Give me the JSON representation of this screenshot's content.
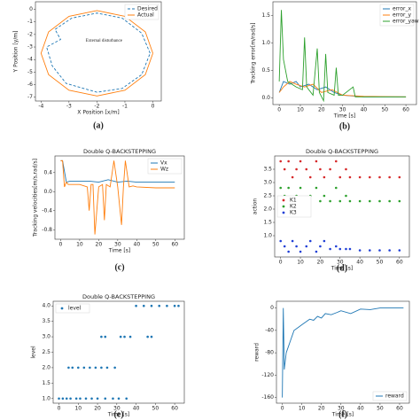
{
  "chart_data": [
    {
      "type": "line",
      "xlabel": "X Position [x/m]",
      "ylabel": "Y Position [y/m]",
      "annotation": "External disturbance",
      "caption": "(a)",
      "legend": "upper right",
      "xlim": [
        -4.2,
        0.3
      ],
      "ylim": [
        -7.3,
        0.6
      ],
      "xticks": [
        -4,
        -3,
        -2,
        -1,
        0
      ],
      "yticks": [
        -7,
        -6,
        -5,
        -4,
        -3,
        -2,
        -1,
        0
      ],
      "series": [
        {
          "name": "Desired",
          "color": "#1f77b4",
          "dash": true,
          "x": [
            -0.1,
            -0.4,
            -1.1,
            -2.0,
            -2.9,
            -3.5,
            -3.3,
            -3.8,
            -3.6,
            -3.1,
            -2.0,
            -1.1,
            -0.4,
            -0.1
          ],
          "values": [
            -3.5,
            -1.9,
            -0.7,
            -0.3,
            -0.7,
            -1.6,
            -2.4,
            -3.0,
            -4.5,
            -5.9,
            -6.6,
            -6.3,
            -5.2,
            -3.5
          ]
        },
        {
          "name": "Actual",
          "color": "#ff7f0e",
          "x": [
            0,
            -0.27,
            -1.0,
            -2.0,
            -3.0,
            -3.73,
            -4.0,
            -3.73,
            -3.0,
            -2.0,
            -1.0,
            -0.27,
            0
          ],
          "values": [
            -3.5,
            -1.8,
            -0.56,
            -0.1,
            -0.56,
            -1.8,
            -3.5,
            -5.2,
            -6.44,
            -6.9,
            -6.44,
            -5.2,
            -3.5
          ]
        }
      ]
    },
    {
      "type": "line",
      "xlabel": "Time [s]",
      "ylabel": "Tracking error[m/rad/s]",
      "caption": "(b)",
      "legend": "upper right",
      "xlim": [
        -3,
        65
      ],
      "ylim": [
        -0.12,
        1.75
      ],
      "xticks": [
        0,
        10,
        20,
        30,
        40,
        50,
        60
      ],
      "yticks": [
        {
          "value": 0,
          "label": "0.0"
        },
        0.5,
        {
          "value": 1,
          "label": "1.0"
        },
        1.5
      ],
      "series": [
        {
          "name": "error_x",
          "color": "#1f77b4",
          "x": [
            0,
            2,
            5,
            8,
            10,
            14,
            18,
            22,
            26,
            30,
            40,
            60
          ],
          "values": [
            0.1,
            0.3,
            0.25,
            0.3,
            0.2,
            0.25,
            0.15,
            0.2,
            0.1,
            0.05,
            0.02,
            0.02
          ]
        },
        {
          "name": "error_y",
          "color": "#ff7f0e",
          "x": [
            0,
            2,
            5,
            8,
            12,
            16,
            20,
            25,
            30,
            40,
            60
          ],
          "values": [
            0.1,
            0.2,
            0.3,
            0.25,
            0.2,
            0.25,
            0.1,
            0.15,
            0.05,
            0.03,
            0.02
          ]
        },
        {
          "name": "error_yaw",
          "color": "#2ca02c",
          "x": [
            0,
            1,
            2,
            4,
            8,
            11,
            12,
            13,
            16,
            18,
            19,
            21,
            22,
            23,
            26,
            27,
            28,
            30,
            35,
            36,
            45,
            60
          ],
          "values": [
            0.3,
            1.6,
            0.7,
            0.3,
            0.2,
            0.15,
            1.1,
            0.2,
            0.05,
            0.9,
            0.1,
            -0.05,
            0.8,
            0.1,
            0.05,
            0.55,
            0.05,
            0.05,
            0.2,
            0.02,
            0.02,
            0.02
          ]
        }
      ]
    },
    {
      "type": "line",
      "title": "Double Q-BACKSTEPPING",
      "xlabel": "Time [s]",
      "ylabel": "Tracking velocities[m/s,rad/s]",
      "caption": "(c)",
      "legend": "upper right",
      "xlim": [
        -3,
        65
      ],
      "ylim": [
        -1.0,
        0.75
      ],
      "xticks": [
        0,
        10,
        20,
        30,
        40,
        50,
        60
      ],
      "yticks": [
        -0.8,
        -0.4,
        {
          "value": 0,
          "label": "0.0"
        },
        0.4
      ],
      "series": [
        {
          "name": "Vx",
          "color": "#1f77b4",
          "x": [
            0,
            1,
            3,
            5,
            10,
            15,
            20,
            25,
            30,
            35,
            40,
            50,
            60
          ],
          "values": [
            0.65,
            0.65,
            0.2,
            0.22,
            0.22,
            0.22,
            0.2,
            0.25,
            0.2,
            0.22,
            0.2,
            0.2,
            0.2
          ]
        },
        {
          "name": "Wz",
          "color": "#ff7f0e",
          "x": [
            0,
            1,
            2,
            3,
            4,
            6,
            10,
            14,
            15,
            16,
            17,
            18,
            20,
            22,
            23,
            24,
            26,
            28,
            30,
            32,
            33,
            34,
            36,
            38,
            40,
            50,
            60
          ],
          "values": [
            0.65,
            0.65,
            0.1,
            0.2,
            0.15,
            0.15,
            0.15,
            0.1,
            -0.4,
            0.15,
            0.15,
            -0.9,
            0.1,
            0.15,
            -0.6,
            0.15,
            0.1,
            0.65,
            0.1,
            -0.7,
            0.1,
            0.65,
            0.1,
            0.12,
            0.1,
            0.08,
            0.08
          ]
        }
      ]
    },
    {
      "type": "scatter",
      "title": "Double Q-BACKSTEPPING",
      "xlabel": "Time [s]",
      "ylabel": "action",
      "caption": "(d)",
      "legend": "center left",
      "xlim": [
        -3,
        65
      ],
      "ylim": [
        0.2,
        4.0
      ],
      "xticks": [
        0,
        10,
        20,
        30,
        40,
        50,
        60
      ],
      "yticks": [
        {
          "value": 1,
          "label": "1.0"
        },
        1.5,
        {
          "value": 2,
          "label": "2.0"
        },
        2.5,
        {
          "value": 3,
          "label": "3.0"
        },
        3.5
      ],
      "series": [
        {
          "name": "K1",
          "color": "#d62728",
          "x": [
            0,
            2,
            4,
            6,
            8,
            10,
            13,
            15,
            18,
            20,
            22,
            25,
            28,
            30,
            33,
            35,
            40,
            45,
            50,
            55,
            60
          ],
          "values": [
            3.8,
            3.5,
            3.8,
            3.2,
            3.5,
            3.8,
            3.5,
            3.2,
            3.8,
            3.5,
            3.2,
            3.5,
            3.8,
            3.2,
            3.5,
            3.2,
            3.2,
            3.2,
            3.2,
            3.2,
            3.2
          ]
        },
        {
          "name": "K2",
          "color": "#2ca02c",
          "x": [
            0,
            2,
            4,
            6,
            8,
            10,
            13,
            15,
            18,
            20,
            22,
            25,
            28,
            30,
            33,
            35,
            40,
            45,
            50,
            55,
            60
          ],
          "values": [
            2.8,
            2.5,
            2.8,
            2.3,
            2.5,
            2.8,
            2.3,
            2.5,
            2.8,
            2.3,
            2.5,
            2.3,
            2.8,
            2.3,
            2.5,
            2.3,
            2.3,
            2.3,
            2.3,
            2.3,
            2.3
          ]
        },
        {
          "name": "K3",
          "color": "#1f3fd6",
          "x": [
            0,
            2,
            4,
            6,
            8,
            10,
            13,
            15,
            18,
            20,
            22,
            25,
            28,
            30,
            33,
            35,
            40,
            45,
            50,
            55,
            60
          ],
          "values": [
            0.8,
            0.6,
            0.4,
            0.8,
            0.6,
            0.4,
            0.6,
            0.8,
            0.4,
            0.6,
            0.8,
            0.5,
            0.6,
            0.5,
            0.5,
            0.5,
            0.45,
            0.45,
            0.45,
            0.45,
            0.45
          ]
        }
      ]
    },
    {
      "type": "scatter",
      "title": "Double Q-BACKSTEPPING",
      "xlabel": "Time [s]",
      "ylabel": "level",
      "caption": "(e)",
      "legend": "upper left",
      "xlim": [
        -3,
        65
      ],
      "ylim": [
        0.85,
        4.15
      ],
      "xticks": [
        0,
        10,
        20,
        30,
        40,
        50,
        60
      ],
      "yticks": [
        {
          "value": 1,
          "label": "1.0"
        },
        1.5,
        {
          "value": 2,
          "label": "2.0"
        },
        2.5,
        {
          "value": 3,
          "label": "3.0"
        },
        3.5,
        {
          "value": 4,
          "label": "4.0"
        }
      ],
      "series": [
        {
          "name": "level",
          "color": "#1f77b4",
          "x": [
            0,
            2,
            4,
            6,
            9,
            11,
            14,
            17,
            20,
            24,
            28,
            31,
            35,
            5,
            7,
            10,
            13,
            16,
            19,
            22,
            25,
            29,
            22,
            24,
            32,
            34,
            37,
            46,
            48,
            40,
            44,
            48,
            52,
            56,
            60,
            62
          ],
          "values": [
            1,
            1,
            1,
            1,
            1,
            1,
            1,
            1,
            1,
            1,
            1,
            1,
            1,
            2,
            2,
            2,
            2,
            2,
            2,
            2,
            2,
            2,
            3,
            3,
            3,
            3,
            3,
            3,
            3,
            4,
            4,
            4,
            4,
            4,
            4,
            4
          ]
        }
      ]
    },
    {
      "type": "line",
      "xlabel": "Time [s]",
      "ylabel": "reward",
      "caption": "(f)",
      "legend": "lower right",
      "xlim": [
        -3,
        65
      ],
      "ylim": [
        -170,
        12
      ],
      "xticks": [
        0,
        10,
        20,
        30,
        40,
        50,
        60
      ],
      "yticks": [
        -160,
        -120,
        -80,
        -40,
        0
      ],
      "series": [
        {
          "name": "reward",
          "color": "#1f77b4",
          "x": [
            0,
            0.5,
            1,
            2,
            3,
            4,
            5,
            6,
            8,
            10,
            12,
            14,
            16,
            18,
            20,
            22,
            25,
            28,
            30,
            35,
            40,
            45,
            50,
            55,
            60,
            62
          ],
          "values": [
            -160,
            0,
            -110,
            -80,
            -70,
            -60,
            -50,
            -40,
            -35,
            -30,
            -25,
            -20,
            -22,
            -15,
            -18,
            -10,
            -12,
            -8,
            -5,
            -10,
            -2,
            -3,
            0,
            0,
            0,
            0
          ]
        }
      ]
    }
  ]
}
